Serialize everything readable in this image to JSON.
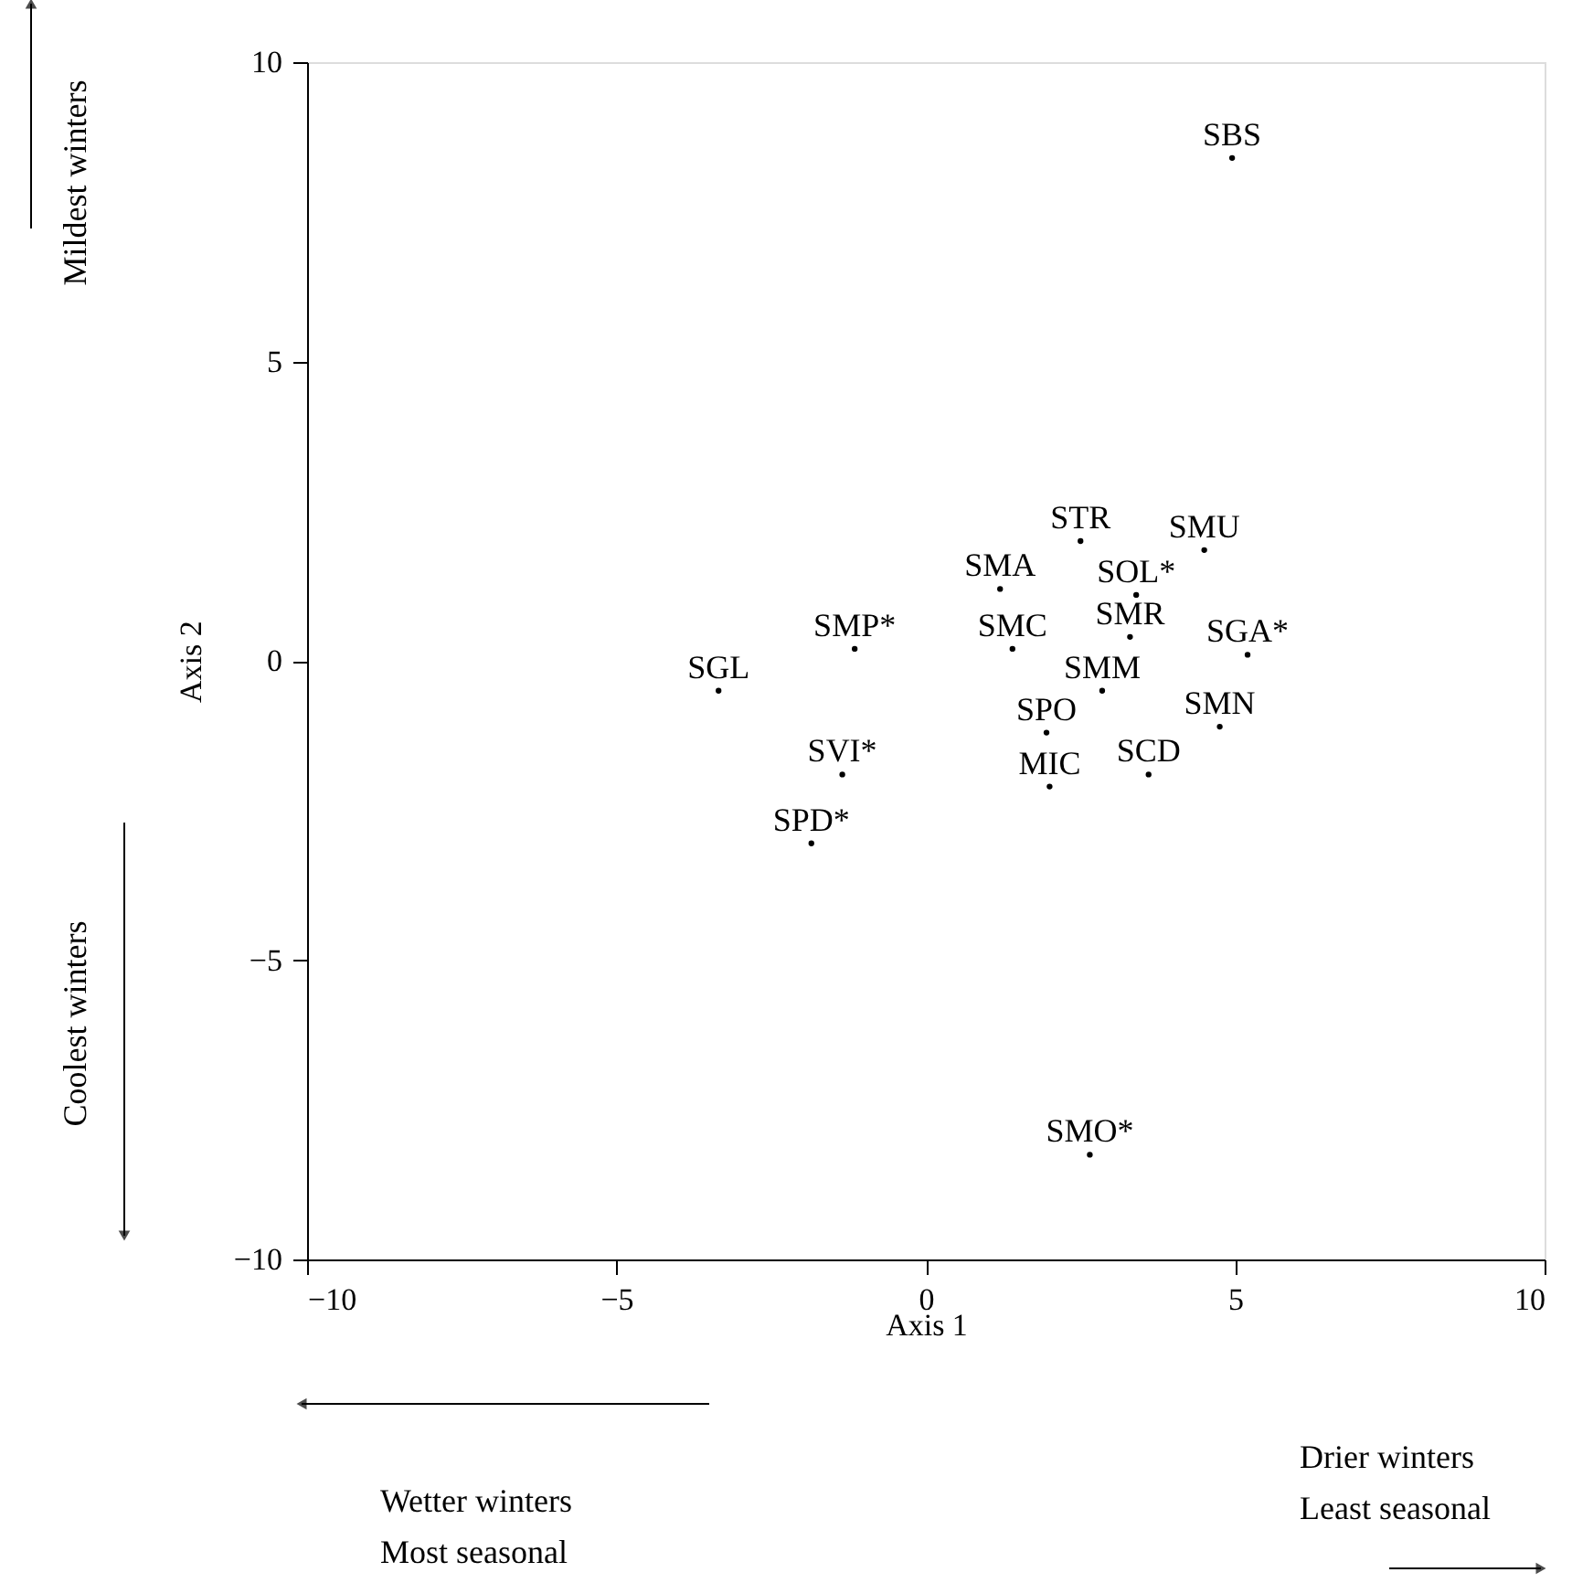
{
  "chart_data": {
    "type": "scatter",
    "xlabel": "Axis 1",
    "ylabel": "Axis 2",
    "xlim": [
      -10,
      10
    ],
    "ylim": [
      -10,
      10
    ],
    "xticks": [
      -10,
      -5,
      0,
      5,
      10
    ],
    "yticks": [
      -10,
      -5,
      0,
      5,
      10
    ],
    "grid": false,
    "marker": "circle",
    "series": [
      {
        "color": "#000000",
        "x": [
          4.95,
          2.5,
          4.5,
          1.2,
          3.4,
          -1.15,
          1.4,
          3.3,
          5.2,
          -3.35,
          2.85,
          1.95,
          4.75,
          -1.35,
          2.0,
          3.6,
          -1.85,
          2.65
        ],
        "values": [
          8.4,
          2.0,
          1.85,
          1.2,
          1.1,
          0.2,
          0.2,
          0.4,
          0.1,
          -0.5,
          -0.5,
          -1.2,
          -1.1,
          -1.9,
          -2.1,
          -1.9,
          -3.05,
          -8.25
        ],
        "value_labels": [
          "SBS",
          "STR",
          "SMU",
          "SMA",
          "SOL*",
          "SMP*",
          "SMC",
          "SMR",
          "SGA*",
          "SGL",
          "SMM",
          "SPO",
          "SMN",
          "SVI*",
          "MIC",
          "SCD",
          "SPD*",
          "SMO*"
        ]
      }
    ],
    "annotations": [
      "Mildest winters",
      "Coolest winters",
      "Wetter winters\nMost seasonal",
      "Drier winters\nLeast seasonal"
    ]
  }
}
